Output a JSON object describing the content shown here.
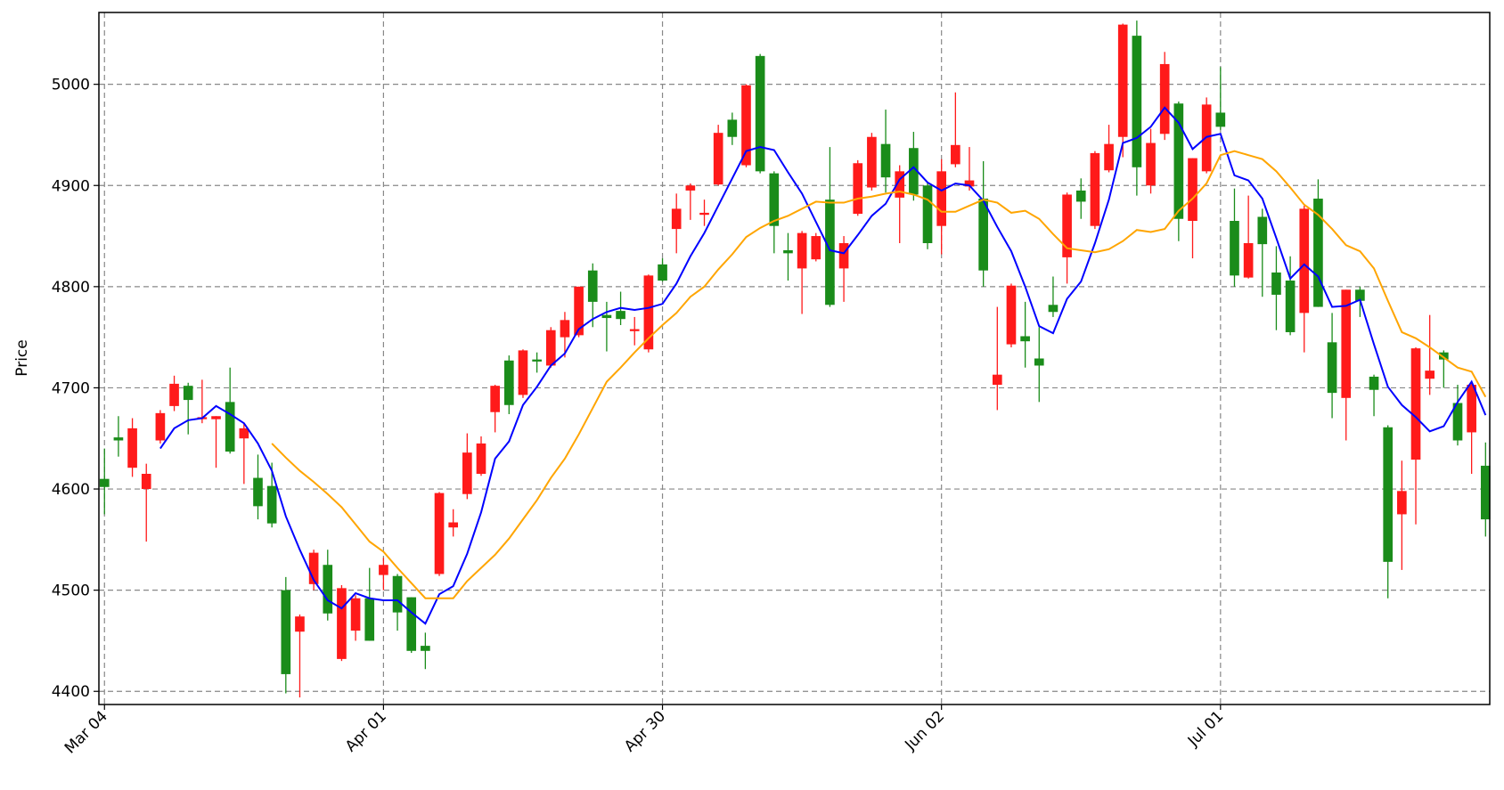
{
  "chart_data": {
    "type": "candlestick",
    "ylabel": "Price",
    "up_color": "#ff1a1a",
    "down_color": "#1a8c1a",
    "grid": true,
    "categories": [
      "Mar 04",
      null,
      null,
      null,
      null,
      null,
      null,
      null,
      null,
      null,
      null,
      null,
      null,
      null,
      null,
      null,
      null,
      null,
      null,
      null,
      "Apr 01",
      null,
      null,
      null,
      null,
      null,
      null,
      null,
      null,
      null,
      null,
      null,
      null,
      null,
      null,
      null,
      null,
      null,
      null,
      null,
      "Apr 30",
      null,
      null,
      null,
      null,
      null,
      null,
      null,
      null,
      null,
      null,
      null,
      null,
      null,
      null,
      null,
      null,
      null,
      null,
      null,
      "Jun 02",
      null,
      null,
      null,
      null,
      null,
      null,
      null,
      null,
      null,
      null,
      null,
      null,
      null,
      null,
      null,
      null,
      null,
      null,
      null,
      "Jul 01",
      null,
      null,
      null,
      null,
      null,
      null,
      null,
      null,
      null,
      null,
      null,
      null,
      null,
      null,
      null,
      null,
      null,
      null,
      null
    ],
    "open": [
      4610,
      4651,
      4621,
      4600,
      4648,
      4682,
      4702,
      4669,
      4669,
      4686,
      4650,
      4611,
      4603,
      4500,
      4459,
      4506,
      4525,
      4432,
      4460,
      4492,
      4515,
      4514,
      4493,
      4445,
      4516,
      4562,
      4595,
      4615,
      4676,
      4727,
      4693,
      4728,
      4722,
      4750,
      4752,
      4816,
      4772,
      4776,
      4756,
      4738,
      4822,
      4857,
      4895,
      4871,
      4901,
      4965,
      4920,
      5028,
      4912,
      4836,
      4818,
      4827,
      4886,
      4818,
      4872,
      4898,
      4941,
      4888,
      4937,
      4900,
      4860,
      4921,
      4899,
      4887,
      4703,
      4743,
      4751,
      4729,
      4782,
      4829,
      4895,
      4860,
      4915,
      4948,
      5048,
      4900,
      4951,
      4981,
      4865,
      4914,
      4972,
      4865,
      4809,
      4869,
      4814,
      4806,
      4774,
      4887,
      4745,
      4690,
      4797,
      4711,
      4661,
      4575,
      4629,
      4709,
      4735,
      4685,
      4656,
      4623
    ],
    "high": [
      4640,
      4672,
      4670,
      4625,
      4678,
      4712,
      4705,
      4708,
      4672,
      4720,
      4665,
      4634,
      4626,
      4513,
      4476,
      4540,
      4540,
      4505,
      4495,
      4522,
      4532,
      4516,
      4493,
      4458,
      4597,
      4580,
      4655,
      4652,
      4703,
      4732,
      4738,
      4735,
      4760,
      4775,
      4800,
      4823,
      4785,
      4795,
      4770,
      4812,
      4828,
      4892,
      4902,
      4886,
      4960,
      4972,
      5000,
      5030,
      4914,
      4853,
      4855,
      4853,
      4938,
      4850,
      4925,
      4952,
      4975,
      4920,
      4953,
      4903,
      4926,
      4992,
      4938,
      4924,
      4780,
      4803,
      4785,
      4760,
      4810,
      4893,
      4907,
      4934,
      4960,
      5060,
      5063,
      4956,
      5032,
      4983,
      4927,
      4987,
      5017,
      4897,
      4890,
      4877,
      4840,
      4830,
      4880,
      4906,
      4774,
      4797,
      4800,
      4713,
      4663,
      4628,
      4740,
      4772,
      4737,
      4703,
      4706,
      4646
    ],
    "low": [
      4575,
      4632,
      4612,
      4548,
      4645,
      4677,
      4654,
      4665,
      4621,
      4635,
      4605,
      4570,
      4562,
      4398,
      4394,
      4500,
      4470,
      4430,
      4450,
      4450,
      4500,
      4460,
      4438,
      4422,
      4514,
      4553,
      4590,
      4613,
      4656,
      4674,
      4690,
      4715,
      4720,
      4730,
      4750,
      4760,
      4736,
      4762,
      4742,
      4735,
      4805,
      4833,
      4866,
      4860,
      4900,
      4940,
      4918,
      4912,
      4833,
      4806,
      4773,
      4825,
      4780,
      4785,
      4870,
      4895,
      4893,
      4843,
      4885,
      4837,
      4832,
      4918,
      4895,
      4800,
      4678,
      4740,
      4720,
      4686,
      4770,
      4803,
      4867,
      4857,
      4913,
      4928,
      4890,
      4892,
      4945,
      4845,
      4828,
      4912,
      4955,
      4800,
      4808,
      4790,
      4757,
      4752,
      4735,
      4780,
      4670,
      4648,
      4770,
      4672,
      4492,
      4520,
      4565,
      4693,
      4700,
      4643,
      4615,
      4553
    ],
    "close": [
      4602,
      4648,
      4660,
      4615,
      4675,
      4704,
      4688,
      4671,
      4672,
      4637,
      4660,
      4583,
      4566,
      4417,
      4474,
      4537,
      4477,
      4502,
      4492,
      4450,
      4525,
      4478,
      4440,
      4440,
      4596,
      4567,
      4636,
      4645,
      4702,
      4683,
      4737,
      4726,
      4757,
      4767,
      4800,
      4785,
      4769,
      4768,
      4758,
      4811,
      4806,
      4877,
      4900,
      4873,
      4952,
      4948,
      4999,
      4914,
      4860,
      4833,
      4853,
      4850,
      4782,
      4843,
      4922,
      4948,
      4908,
      4914,
      4891,
      4843,
      4914,
      4940,
      4905,
      4816,
      4713,
      4801,
      4746,
      4722,
      4775,
      4891,
      4884,
      4932,
      4941,
      5059,
      4918,
      4942,
      5020,
      4867,
      4927,
      4980,
      4958,
      4811,
      4843,
      4842,
      4792,
      4755,
      4877,
      4780,
      4695,
      4797,
      4786,
      4698,
      4528,
      4598,
      4739,
      4717,
      4728,
      4648,
      4703,
      4570
    ],
    "lines": [
      {
        "color": "#0000ff",
        "values": [
          null,
          null,
          null,
          null,
          4640,
          4660,
          4668,
          4670,
          4682,
          4674,
          4665,
          4645,
          4618,
          4573,
          4540,
          4510,
          4490,
          4482,
          4497,
          4492,
          4490,
          4490,
          4478,
          4467,
          4496,
          4504,
          4536,
          4577,
          4630,
          4647,
          4683,
          4701,
          4722,
          4734,
          4758,
          4768,
          4775,
          4779,
          4777,
          4779,
          4783,
          4803,
          4830,
          4853,
          4880,
          4907,
          4934,
          4938,
          4935,
          4913,
          4892,
          4864,
          4836,
          4833,
          4851,
          4870,
          4882,
          4906,
          4918,
          4903,
          4895,
          4902,
          4900,
          4885,
          4859,
          4835,
          4800,
          4761,
          4754,
          4788,
          4805,
          4843,
          4886,
          4942,
          4947,
          4958,
          4977,
          4962,
          4936,
          4948,
          4951,
          4910,
          4905,
          4887,
          4848,
          4808,
          4822,
          4810,
          4780,
          4781,
          4787,
          4743,
          4701,
          4683,
          4671,
          4657,
          4662,
          4686,
          4706,
          4673
        ]
      },
      {
        "color": "#ffa500",
        "values": [
          null,
          null,
          null,
          null,
          null,
          null,
          null,
          null,
          null,
          null,
          null,
          null,
          4645,
          4631,
          4618,
          4607,
          4595,
          4582,
          4565,
          4548,
          4538,
          4522,
          4507,
          4492,
          4492,
          4492,
          4509,
          4522,
          4535,
          4551,
          4570,
          4589,
          4611,
          4630,
          4654,
          4680,
          4706,
          4720,
          4735,
          4749,
          4762,
          4774,
          4790,
          4800,
          4817,
          4832,
          4849,
          4858,
          4865,
          4870,
          4877,
          4884,
          4883,
          4883,
          4887,
          4889,
          4892,
          4894,
          4891,
          4886,
          4874,
          4874,
          4880,
          4886,
          4883,
          4873,
          4875,
          4867,
          4852,
          4838,
          4836,
          4834,
          4837,
          4845,
          4856,
          4854,
          4857,
          4875,
          4887,
          4902,
          4930,
          4934,
          4930,
          4926,
          4914,
          4898,
          4881,
          4871,
          4857,
          4841,
          4835,
          4818,
          4786,
          4755,
          4749,
          4740,
          4730,
          4720,
          4716,
          4691
        ]
      }
    ],
    "xlim": [
      -0.4,
      99.3
    ],
    "ylim": [
      4387,
      5071
    ],
    "yticks": [
      4400,
      4500,
      4600,
      4700,
      4800,
      4900,
      5000
    ]
  }
}
